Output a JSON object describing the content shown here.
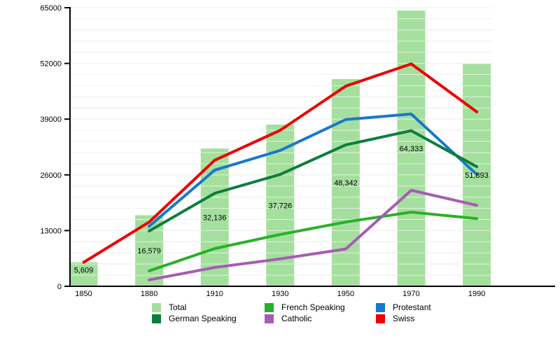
{
  "chart_data": {
    "type": "bar",
    "title": "",
    "xlabel": "",
    "ylabel": "",
    "categories": [
      "1850",
      "1880",
      "1910",
      "1930",
      "1950",
      "1970",
      "1990"
    ],
    "bars": {
      "name": "Total",
      "color": "#a5df9e",
      "values": [
        5609,
        16579,
        32136,
        37726,
        48342,
        64333,
        51893
      ],
      "labels": [
        "5,609",
        "16,579",
        "32,136",
        "37,726",
        "48,342",
        "64,333",
        "51,893"
      ]
    },
    "series": [
      {
        "name": "French Speaking",
        "color": "#29b029",
        "values": [
          null,
          3600,
          8800,
          12100,
          15000,
          17300,
          15800
        ]
      },
      {
        "name": "Protestant",
        "color": "#1878cc",
        "values": [
          null,
          14000,
          27100,
          31700,
          38900,
          40200,
          26100
        ]
      },
      {
        "name": "German Speaking",
        "color": "#0d7d3d",
        "values": [
          null,
          12900,
          21700,
          26100,
          33000,
          36300,
          27900
        ]
      },
      {
        "name": "Catholic",
        "color": "#a55cb3",
        "values": [
          null,
          1500,
          4400,
          6400,
          8700,
          22400,
          18900
        ]
      },
      {
        "name": "Swiss",
        "color": "#ee0000",
        "values": [
          5600,
          15000,
          29400,
          36400,
          46700,
          51900,
          40700
        ]
      }
    ],
    "y_axis": {
      "tick_labels": [
        "0",
        "13000",
        "26000",
        "39000",
        "52000",
        "65000"
      ],
      "tick_values": [
        0,
        13000,
        26000,
        39000,
        52000,
        65000
      ],
      "minor_step": 2600,
      "min": 0,
      "max": 65000,
      "grid": "on"
    },
    "legend_position": "bottom"
  },
  "legend": {
    "items": [
      {
        "label": "Total",
        "color": "#a5df9e"
      },
      {
        "label": "French Speaking",
        "color": "#29b029"
      },
      {
        "label": "Protestant",
        "color": "#1878cc"
      },
      {
        "label": "German Speaking",
        "color": "#0d7d3d"
      },
      {
        "label": "Catholic",
        "color": "#a55cb3"
      },
      {
        "label": "Swiss",
        "color": "#ee0000"
      }
    ]
  },
  "colors": {
    "grid": "#d9d9d9",
    "grid_over_bars": "rgba(255,255,255,0.65)",
    "axis": "#000000",
    "text": "#000000"
  }
}
